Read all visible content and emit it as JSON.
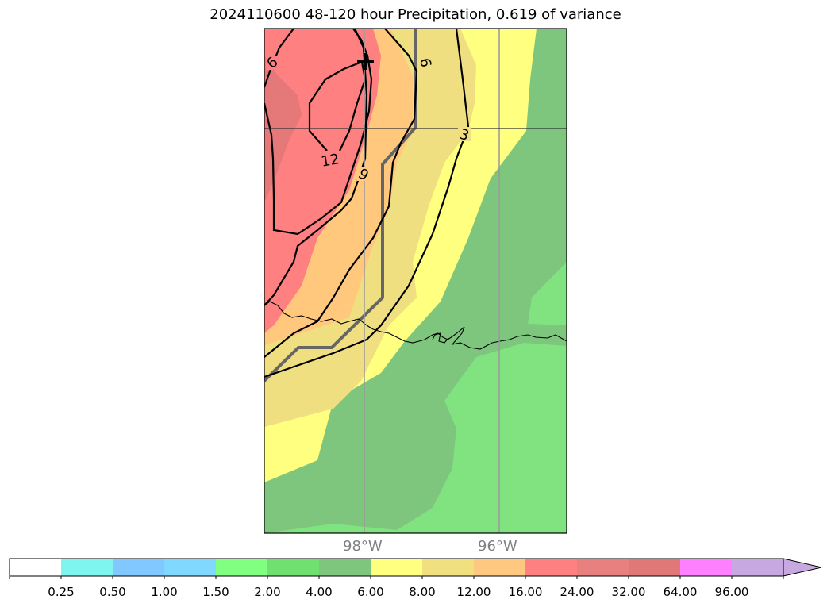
{
  "title": "2024110600 48-120 hour Precipitation, 0.619 of variance",
  "map": {
    "longitude_labels": [
      "98°W",
      "96°W"
    ],
    "contour_labels": [
      "6",
      "9",
      "12",
      "9",
      "6",
      "3"
    ],
    "marker_symbol": "+"
  },
  "colorbar": {
    "colors": [
      "#ffffff",
      "#7ff5f0",
      "#80c8ff",
      "#80d8ff",
      "#80ff80",
      "#70e070",
      "#7ec67e",
      "#ffff80",
      "#f0e080",
      "#ffc880",
      "#ff8080",
      "#e88080",
      "#e07878",
      "#ff80ff",
      "#c8a8e0"
    ],
    "ticks": [
      "0.25",
      "0.50",
      "1.00",
      "1.50",
      "2.00",
      "4.00",
      "6.00",
      "8.00",
      "12.00",
      "16.00",
      "24.00",
      "32.00",
      "64.00",
      "96.00"
    ],
    "extend": "max"
  },
  "colors": {
    "green_light": "#80e380",
    "green_dark": "#7ec67e",
    "yellow": "#ffff80",
    "tan": "#f0df80",
    "orange": "#ffc87d",
    "red": "#ff8080",
    "dark_red": "#e57878",
    "gray_line": "#666666",
    "grid": "#999999"
  }
}
